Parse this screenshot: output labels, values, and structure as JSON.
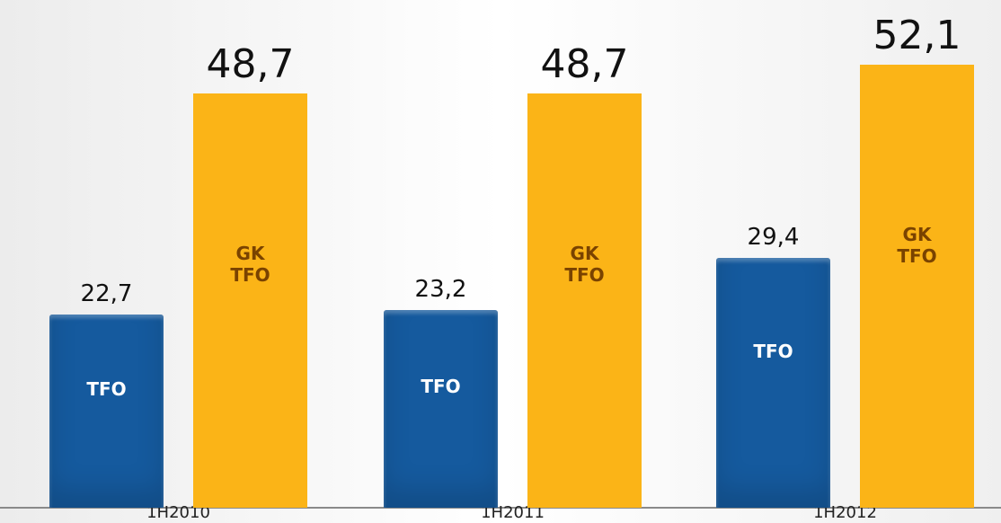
{
  "chart_data": {
    "type": "bar",
    "categories": [
      "1H2010",
      "1H2011",
      "1H2012"
    ],
    "series": [
      {
        "name": "TFO",
        "color": "#155a9e",
        "values": [
          22.7,
          23.2,
          29.4
        ],
        "value_labels": [
          "22,7",
          "23,2",
          "29,4"
        ]
      },
      {
        "name": "GK TFO",
        "color": "#fbb417",
        "values": [
          48.7,
          48.7,
          52.1
        ],
        "value_labels": [
          "48,7",
          "48,7",
          "52,1"
        ]
      }
    ]
  }
}
